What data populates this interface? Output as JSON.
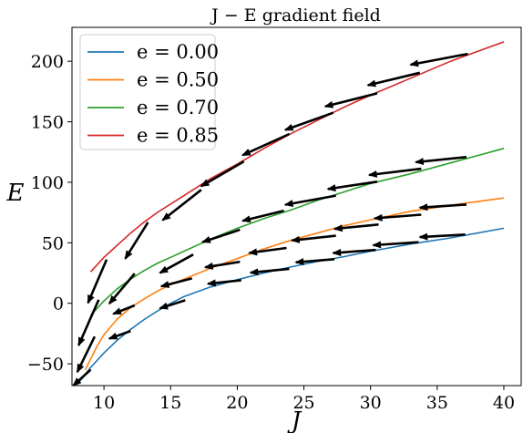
{
  "chart_data": {
    "type": "line",
    "title": "J − E gradient field",
    "xlabel": "J",
    "ylabel": "E",
    "xlim": [
      7.6,
      41.3
    ],
    "ylim": [
      -68,
      228
    ],
    "xticks": [
      10,
      15,
      20,
      25,
      30,
      35,
      40
    ],
    "yticks": [
      -50,
      0,
      50,
      100,
      150,
      200
    ],
    "ytick_labels": [
      "−50",
      "0",
      "50",
      "100",
      "150",
      "200"
    ],
    "grid": false,
    "legend_position": "top-left",
    "series": [
      {
        "name": "e = 0.00",
        "color": "#1f77b4",
        "x": [
          8,
          9,
          10,
          11,
          12,
          13,
          14,
          15,
          16,
          18,
          20,
          22,
          24,
          26,
          28,
          30,
          33,
          36,
          40
        ],
        "y": [
          -67,
          -53,
          -41,
          -30.5,
          -21.5,
          -13.5,
          -6.5,
          0,
          5.5,
          13.5,
          19.5,
          25,
          30,
          34.5,
          38.5,
          43,
          49,
          54,
          62
        ]
      },
      {
        "name": "e = 0.50",
        "color": "#ff7f0e",
        "x": [
          8.6,
          9.5,
          10,
          11,
          12,
          13,
          14,
          15,
          16,
          18,
          20,
          22,
          24,
          26,
          28,
          30,
          33,
          36,
          40
        ],
        "y": [
          -55,
          -35,
          -26,
          -13,
          -3.5,
          3.5,
          10,
          15.5,
          20,
          29,
          37,
          45,
          52,
          58,
          64,
          69,
          76,
          81,
          87
        ]
      },
      {
        "name": "e = 0.70",
        "color": "#2ca02c",
        "x": [
          9,
          10,
          11,
          12,
          13,
          14,
          15,
          16,
          18,
          20,
          22,
          24,
          26,
          28,
          30,
          33,
          36,
          40
        ],
        "y": [
          -10,
          2,
          12,
          20,
          27,
          33,
          38,
          43,
          53,
          62,
          70,
          77,
          85,
          92,
          99,
          107,
          116,
          128
        ]
      },
      {
        "name": "e = 0.85",
        "color": "#d62728",
        "x": [
          9,
          10,
          11,
          12,
          13,
          14,
          15,
          16,
          18,
          20,
          22,
          24,
          26,
          28,
          30,
          33,
          36,
          40
        ],
        "y": [
          26,
          38,
          48,
          58,
          67,
          75,
          82,
          89,
          103,
          115,
          128,
          140,
          151,
          162,
          172,
          186,
          200,
          216
        ]
      }
    ],
    "arrows": [
      {
        "x": 10.2,
        "y": 36.2,
        "dx": -1.4,
        "dy": -35.9
      },
      {
        "x": 9.6,
        "y": 2.9,
        "dx": -1.5,
        "dy": -37.6
      },
      {
        "x": 9.3,
        "y": -27.5,
        "dx": -1.3,
        "dy": -29.2
      },
      {
        "x": 9.0,
        "y": -54.8,
        "dx": -1.3,
        "dy": -13.1
      },
      {
        "x": 13.3,
        "y": 66.9,
        "dx": -1.7,
        "dy": -30.0
      },
      {
        "x": 12.3,
        "y": 24.6,
        "dx": -1.9,
        "dy": -24.8
      },
      {
        "x": 12.3,
        "y": -1.7,
        "dx": -1.6,
        "dy": -7.0
      },
      {
        "x": 12.0,
        "y": -22.9,
        "dx": -1.6,
        "dy": -6.3
      },
      {
        "x": 17.3,
        "y": 93.8,
        "dx": -2.9,
        "dy": -25.1
      },
      {
        "x": 16.7,
        "y": 40.3,
        "dx": -2.5,
        "dy": -15.1
      },
      {
        "x": 16.6,
        "y": 20.6,
        "dx": -2.3,
        "dy": -6.6
      },
      {
        "x": 16.1,
        "y": 2.5,
        "dx": -1.9,
        "dy": -6.6
      },
      {
        "x": 20.5,
        "y": 117.2,
        "dx": -3.2,
        "dy": -20.4
      },
      {
        "x": 20.2,
        "y": 60.8,
        "dx": -2.8,
        "dy": -10.2
      },
      {
        "x": 20.2,
        "y": 34.3,
        "dx": -2.6,
        "dy": -4.5
      },
      {
        "x": 20.3,
        "y": 19.1,
        "dx": -2.5,
        "dy": -3.0
      },
      {
        "x": 23.9,
        "y": 139.9,
        "dx": -3.5,
        "dy": -17.5
      },
      {
        "x": 23.5,
        "y": 76.5,
        "dx": -3.1,
        "dy": -8.4
      },
      {
        "x": 23.7,
        "y": 45.7,
        "dx": -2.8,
        "dy": -4.1
      },
      {
        "x": 23.9,
        "y": 28.5,
        "dx": -2.9,
        "dy": -3.2
      },
      {
        "x": 27.2,
        "y": 157.4,
        "dx": -3.6,
        "dy": -14.1
      },
      {
        "x": 27.4,
        "y": 89.0,
        "dx": -3.8,
        "dy": -7.6
      },
      {
        "x": 27.4,
        "y": 55.8,
        "dx": -3.3,
        "dy": -3.9
      },
      {
        "x": 27.3,
        "y": 36.5,
        "dx": -2.9,
        "dy": -2.7
      },
      {
        "x": 30.5,
        "y": 173.5,
        "dx": -3.9,
        "dy": -10.9
      },
      {
        "x": 30.5,
        "y": 100.5,
        "dx": -3.7,
        "dy": -6.1
      },
      {
        "x": 30.6,
        "y": 65.1,
        "dx": -3.3,
        "dy": -3.6
      },
      {
        "x": 30.4,
        "y": 44.1,
        "dx": -3.2,
        "dy": -2.6
      },
      {
        "x": 33.7,
        "y": 190.5,
        "dx": -3.9,
        "dy": -10.3
      },
      {
        "x": 33.8,
        "y": 111.2,
        "dx": -3.9,
        "dy": -5.2
      },
      {
        "x": 33.8,
        "y": 73.2,
        "dx": -3.5,
        "dy": -3.0
      },
      {
        "x": 33.6,
        "y": 50.5,
        "dx": -3.4,
        "dy": -2.5
      },
      {
        "x": 37.3,
        "y": 206.1,
        "dx": -4.3,
        "dy": -9.0
      },
      {
        "x": 37.2,
        "y": 120.8,
        "dx": -3.8,
        "dy": -4.2
      },
      {
        "x": 37.2,
        "y": 81.6,
        "dx": -3.5,
        "dy": -2.6
      },
      {
        "x": 37.1,
        "y": 56.8,
        "dx": -3.4,
        "dy": -2.1
      }
    ]
  }
}
